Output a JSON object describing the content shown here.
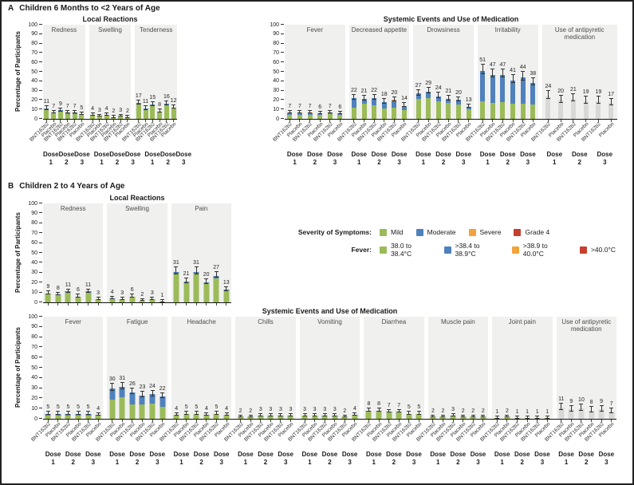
{
  "figure": {
    "panel_a": {
      "label": "A",
      "title": "Children 6 Months to <2 Years of Age"
    },
    "panel_b": {
      "label": "B",
      "title": "Children 2 to 4 Years of Age"
    }
  },
  "legend": {
    "severity_label": "Severity of Symptoms:",
    "severity_items": [
      {
        "label": "Mild",
        "color": "#9bbb59"
      },
      {
        "label": "Moderate",
        "color": "#4f81bd"
      },
      {
        "label": "Severe",
        "color": "#f2a33c"
      },
      {
        "label": "Grade 4",
        "color": "#c5402e"
      }
    ],
    "fever_label": "Fever:",
    "fever_items": [
      {
        "label": "38.0 to 38.4°C",
        "color": "#9bbb59"
      },
      {
        "label": ">38.4 to 38.9°C",
        "color": "#4f81bd"
      },
      {
        "label": ">38.9 to 40.0°C",
        "color": "#f2a33c"
      },
      {
        "label": ">40.0°C",
        "color": "#c5402e"
      }
    ]
  },
  "colors": {
    "mild": "#9bbb59",
    "moderate": "#4f81bd",
    "severe": "#f2a33c",
    "grade4": "#c5402e",
    "gray_bar": "#d8d8d7",
    "panel_bg": "#f0f0ee"
  },
  "chart_data": [
    {
      "id": "a_local",
      "type": "bar",
      "title": "Local Reactions",
      "ylabel": "Percentage of Participants",
      "ylim": [
        0,
        100
      ],
      "yticks": [
        0,
        10,
        20,
        30,
        40,
        50,
        60,
        70,
        80,
        90,
        100
      ],
      "groups": [
        "Dose 1",
        "Dose 2",
        "Dose 3"
      ],
      "bar_labels": [
        "BNT162b2",
        "Placebo",
        "BNT162b2",
        "Placebo",
        "BNT162b2",
        "Placebo"
      ],
      "subpanels": [
        {
          "name": "Redness",
          "totals": [
            11,
            7,
            9,
            7,
            7,
            5
          ],
          "stacks": [
            [
              9.5,
              1.5
            ],
            [
              6,
              1
            ],
            [
              8,
              1
            ],
            [
              5.5,
              1.5
            ],
            [
              5,
              2
            ],
            [
              4.5,
              0.5
            ]
          ]
        },
        {
          "name": "Swelling",
          "totals": [
            4,
            3,
            4,
            2,
            3,
            2
          ],
          "stacks": [
            [
              3.5,
              0.5
            ],
            [
              2.5,
              0.5
            ],
            [
              3.5,
              0.5
            ],
            [
              1.5,
              0.5
            ],
            [
              2.5,
              0.5
            ],
            [
              1.5,
              0.5
            ]
          ]
        },
        {
          "name": "Tenderness",
          "totals": [
            17,
            11,
            15,
            8,
            16,
            12
          ],
          "stacks": [
            [
              15,
              2
            ],
            [
              10,
              1
            ],
            [
              13.5,
              1.5
            ],
            [
              7,
              1
            ],
            [
              14,
              2
            ],
            [
              11,
              1
            ]
          ]
        }
      ]
    },
    {
      "id": "a_systemic",
      "type": "bar",
      "title": "Systemic Events and Use of Medication",
      "ylabel": null,
      "ylim": [
        0,
        100
      ],
      "yticks": [
        0,
        10,
        20,
        30,
        40,
        50,
        60,
        70,
        80,
        90,
        100
      ],
      "groups": [
        "Dose 1",
        "Dose 2",
        "Dose 3"
      ],
      "bar_labels": [
        "BNT162b2",
        "Placebo",
        "BNT162b2",
        "Placebo",
        "BNT162b2",
        "Placebo"
      ],
      "subpanels": [
        {
          "name": "Fever",
          "totals": [
            7,
            7,
            7,
            6,
            7,
            6
          ],
          "stacks": [
            [
              4.5,
              1.5,
              1
            ],
            [
              4.5,
              1.5,
              1
            ],
            [
              4.5,
              1.5,
              1
            ],
            [
              4,
              1.2,
              0.8
            ],
            [
              5,
              1.5,
              0.5
            ],
            [
              4.5,
              1,
              0.5
            ]
          ]
        },
        {
          "name": "Decreased appetite",
          "totals": [
            22,
            21,
            22,
            18,
            20,
            14
          ],
          "stacks": [
            [
              12,
              10
            ],
            [
              16,
              5
            ],
            [
              14,
              8
            ],
            [
              11,
              7
            ],
            [
              12,
              7.5,
              0.5
            ],
            [
              9,
              5
            ]
          ]
        },
        {
          "name": "Drowsiness",
          "totals": [
            27,
            29,
            24,
            21,
            20,
            13
          ],
          "stacks": [
            [
              21,
              6
            ],
            [
              22,
              7
            ],
            [
              19,
              5
            ],
            [
              17,
              4
            ],
            [
              15,
              5
            ],
            [
              10,
              3
            ]
          ]
        },
        {
          "name": "Irritability",
          "totals": [
            51,
            47,
            47,
            41,
            44,
            38
          ],
          "stacks": [
            [
              19,
              32
            ],
            [
              17,
              30
            ],
            [
              18,
              29
            ],
            [
              16,
              24.5,
              0.5
            ],
            [
              16,
              28
            ],
            [
              15,
              23
            ]
          ]
        },
        {
          "name": "Use of antipyretic medication",
          "totals": [
            24,
            20,
            21,
            19,
            19,
            17
          ],
          "gray": true,
          "stacks": [
            [
              24
            ],
            [
              20
            ],
            [
              21
            ],
            [
              19
            ],
            [
              19
            ],
            [
              17
            ]
          ]
        }
      ]
    },
    {
      "id": "b_local",
      "type": "bar",
      "title": "Local Reactions",
      "ylabel": "Percentage of Participants",
      "ylim": [
        0,
        100
      ],
      "yticks": [
        0,
        10,
        20,
        30,
        40,
        50,
        60,
        70,
        80,
        90,
        100
      ],
      "groups": [
        "Dose 1",
        "Dose 2",
        "Dose 3"
      ],
      "bar_labels": [
        "BNT162b2",
        "Placebo",
        "BNT162b2",
        "Placebo",
        "BNT162b2",
        "Placebo"
      ],
      "subpanels": [
        {
          "name": "Redness",
          "totals": [
            9,
            8,
            11,
            6,
            11,
            3
          ],
          "stacks": [
            [
              8,
              1
            ],
            [
              7.5,
              0.5
            ],
            [
              10,
              1
            ],
            [
              5.5,
              0.5
            ],
            [
              9.5,
              1.5
            ],
            [
              3
            ]
          ]
        },
        {
          "name": "Swelling",
          "totals": [
            4,
            3,
            6,
            2,
            3,
            1
          ],
          "stacks": [
            [
              3.5,
              0.5
            ],
            [
              3
            ],
            [
              5.5,
              0.5
            ],
            [
              1.5,
              0.5
            ],
            [
              3
            ],
            [
              1
            ]
          ]
        },
        {
          "name": "Pain",
          "totals": [
            31,
            21,
            31,
            20,
            27,
            13
          ],
          "stacks": [
            [
              29,
              2
            ],
            [
              20,
              1
            ],
            [
              29,
              2
            ],
            [
              19,
              1
            ],
            [
              24,
              3
            ],
            [
              12.5,
              0.5
            ]
          ]
        }
      ]
    },
    {
      "id": "b_systemic",
      "type": "bar",
      "title": "Systemic Events and Use of Medication",
      "ylabel": "Percentage of Participants",
      "ylim": [
        0,
        100
      ],
      "yticks": [
        0,
        10,
        20,
        30,
        40,
        50,
        60,
        70,
        80,
        90,
        100
      ],
      "groups": [
        "Dose 1",
        "Dose 2",
        "Dose 3"
      ],
      "bar_labels": [
        "BNT162b2",
        "Placebo",
        "BNT162b2",
        "Placebo",
        "BNT162b2",
        "Placebo"
      ],
      "subpanels": [
        {
          "name": "Fever",
          "totals": [
            5,
            5,
            5,
            5,
            5,
            4
          ],
          "stacks": [
            [
              3.5,
              1,
              0.5
            ],
            [
              3.5,
              1,
              0.5
            ],
            [
              3.5,
              1,
              0.5
            ],
            [
              3.5,
              1,
              0.5
            ],
            [
              3.5,
              1,
              0.5
            ],
            [
              3,
              0.7,
              0.3
            ]
          ]
        },
        {
          "name": "Fatigue",
          "totals": [
            30,
            31,
            26,
            23,
            24,
            22
          ],
          "stacks": [
            [
              19,
              11
            ],
            [
              21,
              10
            ],
            [
              14,
              12
            ],
            [
              14,
              9
            ],
            [
              15,
              9
            ],
            [
              12,
              10
            ]
          ]
        },
        {
          "name": "Headache",
          "totals": [
            4,
            5,
            5,
            4,
            5,
            4
          ],
          "stacks": [
            [
              4
            ],
            [
              4.5,
              0.5
            ],
            [
              4.5,
              0.5
            ],
            [
              3.5,
              0.5
            ],
            [
              4.5,
              0.5
            ],
            [
              4
            ]
          ]
        },
        {
          "name": "Chills",
          "totals": [
            2,
            2,
            3,
            3,
            3,
            3
          ],
          "stacks": [
            [
              2
            ],
            [
              2
            ],
            [
              2.5,
              0.5
            ],
            [
              2.5,
              0.5
            ],
            [
              2.5,
              0.5
            ],
            [
              2.5,
              0.5
            ]
          ]
        },
        {
          "name": "Vomiting",
          "totals": [
            3,
            3,
            3,
            3,
            2,
            4
          ],
          "stacks": [
            [
              3
            ],
            [
              3
            ],
            [
              2.5,
              0.5
            ],
            [
              2.5,
              0.5
            ],
            [
              2
            ],
            [
              3.5,
              0.5
            ]
          ]
        },
        {
          "name": "Diarrhea",
          "totals": [
            8,
            8,
            7,
            7,
            5,
            5
          ],
          "stacks": [
            [
              7,
              1
            ],
            [
              7,
              1
            ],
            [
              6,
              1
            ],
            [
              6,
              1
            ],
            [
              4.5,
              0.5
            ],
            [
              4.5,
              0.5
            ]
          ]
        },
        {
          "name": "Muscle pain",
          "totals": [
            2,
            2,
            3,
            2,
            2,
            2
          ],
          "stacks": [
            [
              2
            ],
            [
              2
            ],
            [
              2.5,
              0.5
            ],
            [
              2
            ],
            [
              2
            ],
            [
              2
            ]
          ]
        },
        {
          "name": "Joint pain",
          "totals": [
            1,
            2,
            1,
            1,
            1,
            1
          ],
          "stacks": [
            [
              1
            ],
            [
              2
            ],
            [
              1
            ],
            [
              1
            ],
            [
              1
            ],
            [
              1
            ]
          ]
        },
        {
          "name": "Use of antipyretic medication",
          "totals": [
            11,
            9,
            10,
            8,
            9,
            7
          ],
          "gray": true,
          "stacks": [
            [
              11
            ],
            [
              9
            ],
            [
              10
            ],
            [
              8
            ],
            [
              9
            ],
            [
              7
            ]
          ]
        }
      ]
    }
  ]
}
